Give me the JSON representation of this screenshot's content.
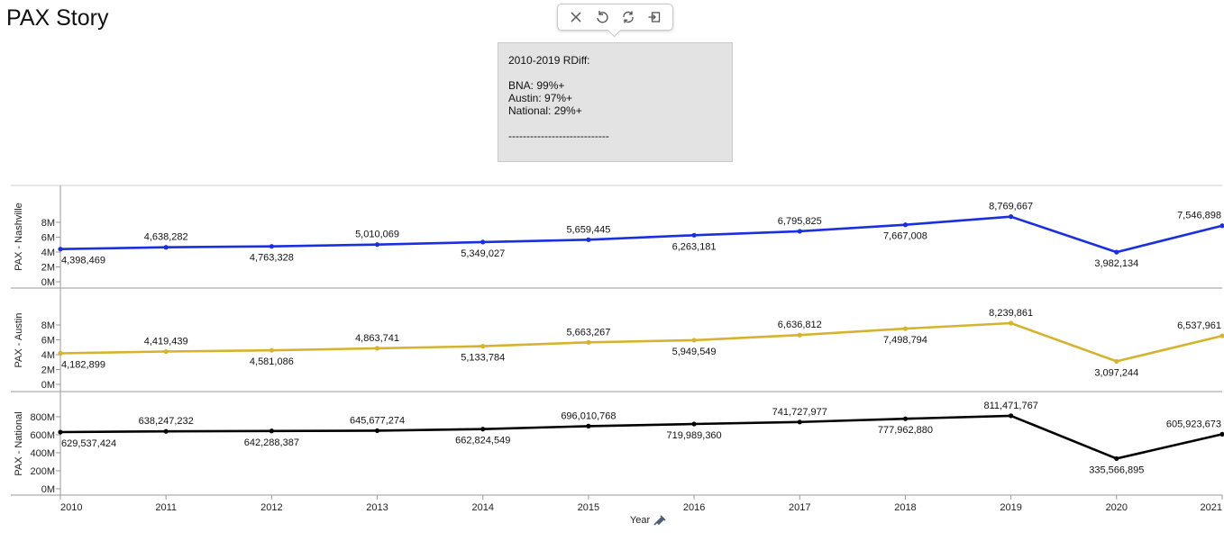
{
  "page": {
    "title": "PAX Story"
  },
  "toolbar": {
    "buttons": [
      {
        "name": "close-icon"
      },
      {
        "name": "undo-icon"
      },
      {
        "name": "refresh-icon"
      },
      {
        "name": "export-icon"
      }
    ]
  },
  "annotation": {
    "heading": "2010-2019 RDiff:",
    "lines": [
      "BNA: 99%+",
      "Austin: 97%+",
      "National: 29%+"
    ],
    "divider": "----------------------------"
  },
  "chart_data": [
    {
      "type": "line",
      "ylabel": "PAX - Nashville",
      "color": "#1a2fe0",
      "yticks": [
        "8M",
        "6M",
        "4M",
        "2M",
        "0M"
      ],
      "ylim": [
        0,
        9000000
      ],
      "x": [
        2010,
        2011,
        2012,
        2013,
        2014,
        2015,
        2016,
        2017,
        2018,
        2019,
        2020,
        2021
      ],
      "values": [
        4398469,
        4638282,
        4763328,
        5010069,
        5349027,
        5659445,
        6263181,
        6795825,
        7667008,
        8769667,
        3982134,
        7546898
      ],
      "labels": [
        "4,398,469",
        "4,638,282",
        "4,763,328",
        "5,010,069",
        "5,349,027",
        "5,659,445",
        "6,263,181",
        "6,795,825",
        "7,667,008",
        "8,769,667",
        "3,982,134",
        "7,546,898"
      ]
    },
    {
      "type": "line",
      "ylabel": "PAX - Austin",
      "color": "#d6b32e",
      "yticks": [
        "8M",
        "6M",
        "4M",
        "2M",
        "0M"
      ],
      "ylim": [
        0,
        9000000
      ],
      "x": [
        2010,
        2011,
        2012,
        2013,
        2014,
        2015,
        2016,
        2017,
        2018,
        2019,
        2020,
        2021
      ],
      "values": [
        4182899,
        4419439,
        4581086,
        4863741,
        5133784,
        5663267,
        5949549,
        6636812,
        7498794,
        8239861,
        3097244,
        6537961
      ],
      "labels": [
        "4,182,899",
        "4,419,439",
        "4,581,086",
        "4,863,741",
        "5,133,784",
        "5,663,267",
        "5,949,549",
        "6,636,812",
        "7,498,794",
        "8,239,861",
        "3,097,244",
        "6,537,961"
      ]
    },
    {
      "type": "line",
      "ylabel": "PAX - National",
      "color": "#000000",
      "yticks": [
        "800M",
        "600M",
        "400M",
        "200M",
        "0M"
      ],
      "ylim": [
        0,
        850000000
      ],
      "x": [
        2010,
        2011,
        2012,
        2013,
        2014,
        2015,
        2016,
        2017,
        2018,
        2019,
        2020,
        2021
      ],
      "values": [
        629537424,
        638247232,
        642288387,
        645677274,
        662824549,
        696010768,
        719989360,
        741727977,
        777962880,
        811471767,
        335566895,
        605923673
      ],
      "labels": [
        "629,537,424",
        "638,247,232",
        "642,288,387",
        "645,677,274",
        "662,824,549",
        "696,010,768",
        "719,989,360",
        "741,727,977",
        "777,962,880",
        "811,471,767",
        "335,566,895",
        "605,923,673"
      ]
    }
  ],
  "xaxis": {
    "label": "Year",
    "ticks": [
      "2010",
      "2011",
      "2012",
      "2013",
      "2014",
      "2015",
      "2016",
      "2017",
      "2018",
      "2019",
      "2020",
      "2021"
    ],
    "pin_icon": "pin-icon"
  }
}
